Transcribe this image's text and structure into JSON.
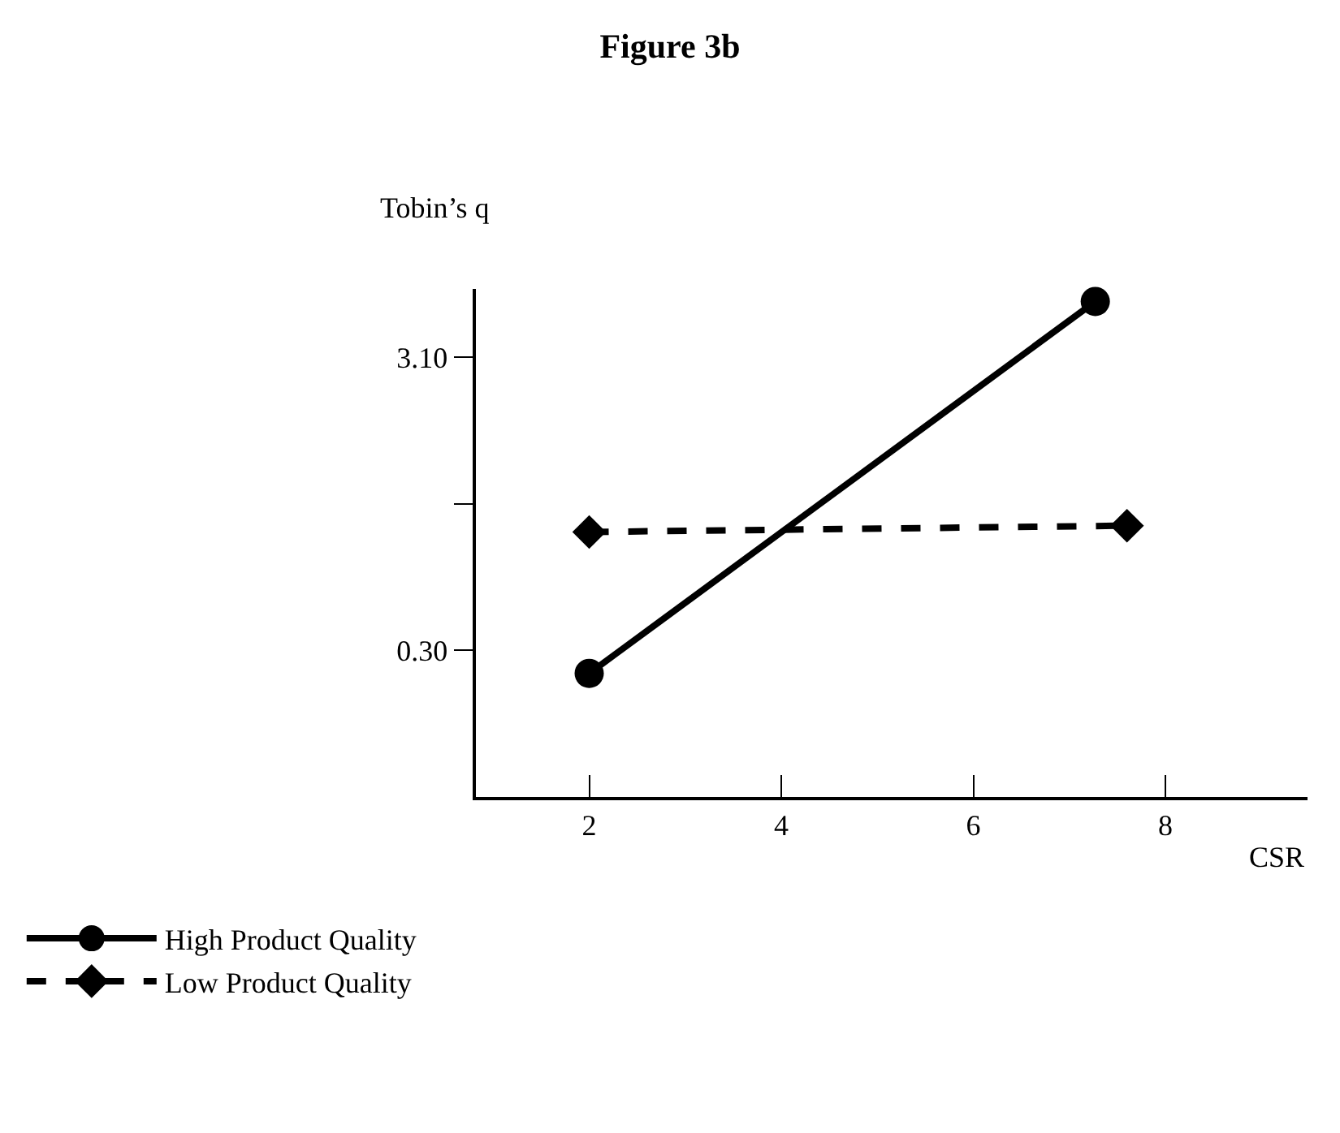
{
  "chart_data": {
    "type": "line",
    "title": "Figure 3b",
    "xlabel": "CSR",
    "ylabel": "Tobin’s q",
    "xlim": [
      0.82,
      9.48
    ],
    "xticks": [
      2,
      4,
      6,
      8
    ],
    "ylim": [
      -1.1,
      3.75
    ],
    "yticks": [
      {
        "value": 0.3,
        "label": "0.30"
      },
      {
        "value": 1.7,
        "label": null
      },
      {
        "value": 3.1,
        "label": "3.10"
      }
    ],
    "legend": "bottom left",
    "series": [
      {
        "name": "High Product Quality",
        "color": "#000000",
        "x": [
          2,
          7.27
        ],
        "values": [
          0.08,
          3.63
        ],
        "marker": "circle",
        "line_style": "solid"
      },
      {
        "name": "Low Product Quality",
        "color": "#000000",
        "x": [
          2,
          7.6
        ],
        "values": [
          1.43,
          1.49
        ],
        "marker": "diamond",
        "line_style": "dashed"
      }
    ]
  }
}
